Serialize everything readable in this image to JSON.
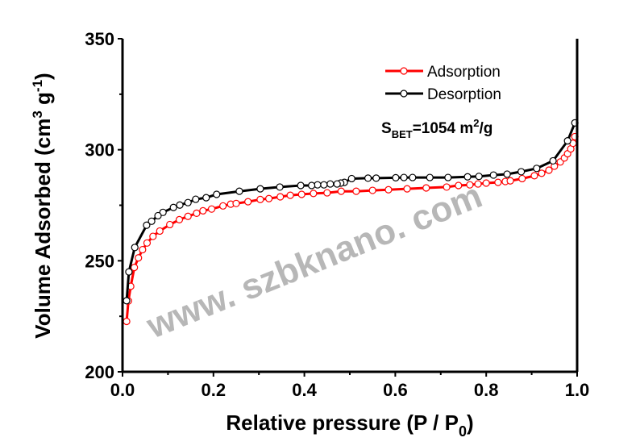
{
  "chart_data": {
    "type": "line",
    "xlabel": "Relative pressure (P / P",
    "xlabel_sub": "0",
    "xlabel_end": ")",
    "ylabel": "Volume Adsorbed (cm",
    "ylabel_sup1": "3",
    "ylabel_mid": " g",
    "ylabel_sup2": "-1",
    "ylabel_end": ")",
    "xlim": [
      0.0,
      1.0
    ],
    "ylim": [
      200,
      350
    ],
    "xticks": [
      "0.0",
      "0.2",
      "0.4",
      "0.6",
      "0.8",
      "1.0"
    ],
    "yticks": [
      "200",
      "250",
      "300",
      "350"
    ],
    "grid": false,
    "legend_position": "top-right",
    "annotation": {
      "s": "S",
      "sub": "BET",
      "eq": "=1054 m",
      "sup": "2",
      "unit": "/g"
    },
    "series": [
      {
        "name": "Adsorption",
        "color": "#ff0000",
        "marker": "open-circle",
        "x": [
          0.009,
          0.013,
          0.018,
          0.026,
          0.035,
          0.044,
          0.054,
          0.067,
          0.082,
          0.104,
          0.125,
          0.144,
          0.163,
          0.177,
          0.196,
          0.221,
          0.238,
          0.25,
          0.276,
          0.303,
          0.322,
          0.347,
          0.369,
          0.394,
          0.42,
          0.45,
          0.481,
          0.514,
          0.55,
          0.585,
          0.626,
          0.668,
          0.713,
          0.739,
          0.764,
          0.782,
          0.8,
          0.826,
          0.842,
          0.853,
          0.879,
          0.906,
          0.922,
          0.938,
          0.95,
          0.963,
          0.972,
          0.979,
          0.986,
          0.991,
          0.995
        ],
        "y": [
          222.7,
          231.9,
          238.5,
          247,
          251.3,
          255,
          258,
          261,
          263.4,
          266.3,
          268.5,
          270,
          271.4,
          272.5,
          273.3,
          274.7,
          275.5,
          275.8,
          276.6,
          277.6,
          278,
          278.8,
          279.5,
          279.9,
          280.3,
          280.6,
          281.3,
          281.3,
          281.7,
          282,
          282.4,
          282.8,
          283.2,
          283.9,
          284.2,
          284.6,
          285,
          285.3,
          285.7,
          286,
          287,
          288.3,
          289.4,
          290.8,
          292.6,
          294.5,
          296.3,
          298.2,
          300.4,
          302.9,
          305.9
        ]
      },
      {
        "name": "Desorption",
        "color": "#000000",
        "marker": "open-circle",
        "x": [
          0.995,
          0.979,
          0.947,
          0.911,
          0.877,
          0.846,
          0.816,
          0.784,
          0.759,
          0.716,
          0.676,
          0.638,
          0.619,
          0.601,
          0.558,
          0.54,
          0.504,
          0.488,
          0.48,
          0.472,
          0.457,
          0.443,
          0.429,
          0.416,
          0.392,
          0.346,
          0.303,
          0.257,
          0.207,
          0.184,
          0.161,
          0.144,
          0.126,
          0.112,
          0.089,
          0.078,
          0.064,
          0.053,
          0.027,
          0.014,
          0.009
        ],
        "y": [
          312.1,
          304,
          295,
          291.6,
          290.1,
          289,
          288.6,
          288,
          287.8,
          287.5,
          287.5,
          287.5,
          287.5,
          287.4,
          287.2,
          287.2,
          287,
          285.3,
          285,
          284.6,
          284.6,
          284.2,
          284.2,
          283.9,
          283.9,
          283.2,
          282.4,
          281.3,
          279.9,
          278.4,
          277.7,
          276.2,
          275.1,
          274,
          271.8,
          270.3,
          267.8,
          266,
          256,
          245,
          232
        ]
      }
    ]
  },
  "watermark": "www. szbknano. com"
}
